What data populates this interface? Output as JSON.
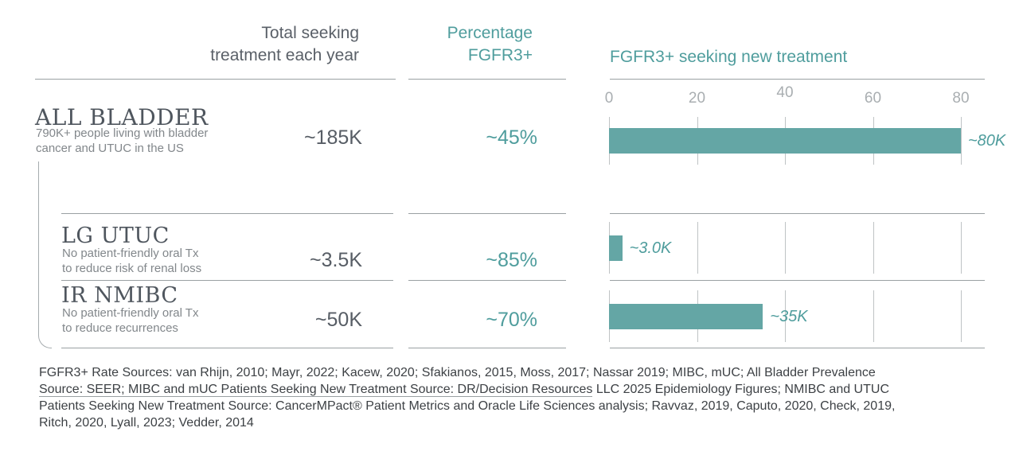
{
  "table": {
    "header": {
      "col_total": {
        "line1": "Total seeking",
        "line2": "treatment each year"
      },
      "col_pct": {
        "line1": "Percentage",
        "line2": "FGFR3+"
      }
    },
    "rows": [
      {
        "title": "ALL BLADDER",
        "desc_line1": "790K+ people living with bladder",
        "desc_line2": "cancer and UTUC in the US",
        "total": "~185K",
        "pct": "~45%"
      },
      {
        "title": "LG UTUC",
        "desc_line1": "No patient-friendly oral Tx",
        "desc_line2": "to reduce risk of renal loss",
        "total": "~3.5K",
        "pct": "~85%"
      },
      {
        "title": "IR NMIBC",
        "desc_line1": "No patient-friendly oral Tx",
        "desc_line2": "to reduce recurrences",
        "total": "~50K",
        "pct": "~70%"
      }
    ]
  },
  "chart_data": {
    "type": "bar",
    "orientation": "horizontal",
    "title": "FGFR3+ seeking new treatment",
    "categories": [
      "ALL BLADDER",
      "LG UTUC",
      "IR NMIBC"
    ],
    "values": [
      80,
      3.0,
      35
    ],
    "value_labels": [
      "~80K",
      "~3.0K",
      "~35K"
    ],
    "x_ticks": [
      0,
      20,
      40,
      60,
      80
    ],
    "xlim": [
      0,
      80
    ],
    "grid": true,
    "legend": "none",
    "bar_color": "#64a6a5"
  },
  "footer": {
    "line1": "FGFR3+ Rate Sources: van Rhijn, 2010; Mayr, 2022; Kacew, 2020; Sfakianos, 2015, Moss, 2017; Nassar 2019; MIBC, mUC; All Bladder Prevalence",
    "line2_underlined": "Source: SEER; MIBC and mUC Patients Seeking New Treatment Source: DR/Decision Resources",
    "line2_rest": " LLC 2025 Epidemiology Figures; NMIBC and UTUC",
    "line3": "Patients Seeking New Treatment Source: CancerMPact® Patient Metrics and Oracle Life Sciences analysis; Ravvaz, 2019, Caputo, 2020, Check, 2019,",
    "line4": "Ritch, 2020, Lyall, 2023; Vedder, 2014"
  },
  "colors": {
    "teal_text": "#4f9d9d",
    "bar_fill": "#64a6a5",
    "header_gray": "#5a6068",
    "title_gray": "#4f565e",
    "desc_gray": "#82878b",
    "tick_gray": "#a9aeb1",
    "line_gray": "#9aa0a3",
    "footer_text": "#3d4145"
  }
}
